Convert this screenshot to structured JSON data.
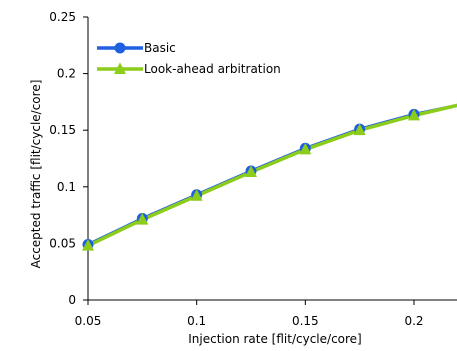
{
  "chart_data": {
    "type": "line",
    "xlabel": "Injection rate [flit/cycle/core]",
    "ylabel": "Accepted traffic [flit/cycle/core]",
    "xlim": [
      0.05,
      0.22
    ],
    "ylim": [
      0,
      0.25
    ],
    "x_ticks": [
      "0.05",
      "0.1",
      "0.15",
      "0.2"
    ],
    "y_ticks": [
      "0",
      "0.05",
      "0.1",
      "0.15",
      "0.2",
      "0.25"
    ],
    "grid": false,
    "legend_position": "top-left",
    "series": [
      {
        "name": "Basic",
        "color": "#1f5fe0",
        "marker": "circle",
        "x": [
          0.05,
          0.075,
          0.1,
          0.125,
          0.15,
          0.175,
          0.2,
          0.22
        ],
        "y": [
          0.049,
          0.072,
          0.093,
          0.114,
          0.134,
          0.151,
          0.164,
          0.172
        ]
      },
      {
        "name": "Look-ahead arbitration",
        "color": "#8ccc1a",
        "marker": "triangle",
        "x": [
          0.05,
          0.075,
          0.1,
          0.125,
          0.15,
          0.175,
          0.2,
          0.22
        ],
        "y": [
          0.048,
          0.071,
          0.092,
          0.113,
          0.133,
          0.15,
          0.163,
          0.172
        ]
      }
    ]
  }
}
